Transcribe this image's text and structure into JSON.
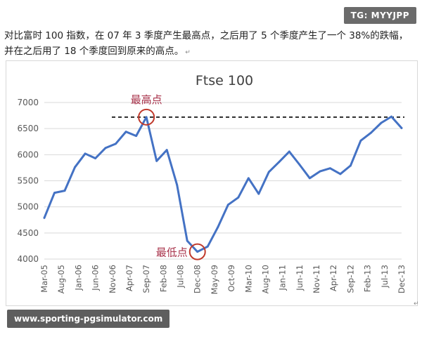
{
  "badge": {
    "text": "TG: MYYJPP"
  },
  "article": {
    "line1": "对比富时 100 指数，在 07 年 3 季度产生最高点，之后用了 5 个季度产生了一个 38%的跌幅，",
    "line2": "并在之后用了 18 个季度回到原来的高点。",
    "caret": "↵"
  },
  "footer": {
    "url": "www.sporting-pgsimulator.com",
    "mark": "↵"
  },
  "colors": {
    "line": "#4472c4",
    "marker": "#c0392b",
    "annotation_text": "#a8324a",
    "dashed": "#000000",
    "grid": "#d9d9d9"
  },
  "chart_data": {
    "type": "line",
    "title": "Ftse 100",
    "ylim": [
      4000,
      7000
    ],
    "yticks": [
      4000,
      4500,
      5000,
      5500,
      6000,
      6500,
      7000
    ],
    "xtick_labels": [
      "Mar-05",
      "Aug-05",
      "Jan-06",
      "Jun-06",
      "Nov-06",
      "Apr-07",
      "Sep-07",
      "Feb-08",
      "Jul-08",
      "Dec-08",
      "May-09",
      "Oct-09",
      "Mar-10",
      "Aug-10",
      "Jan-11",
      "Jun-11",
      "Nov-11",
      "Apr-12",
      "Sep-12",
      "Feb-13",
      "Jul-13",
      "Dec-13"
    ],
    "grid": true,
    "legend": "none",
    "reference_line": {
      "value": 6720,
      "style": "dashed"
    },
    "series": [
      {
        "values": [
          4790,
          5270,
          5310,
          5760,
          6020,
          5930,
          6130,
          6210,
          6440,
          6360,
          6720,
          5880,
          6090,
          5420,
          4350,
          4140,
          4240,
          4610,
          5040,
          5180,
          5550,
          5250,
          5670,
          5860,
          6060,
          5810,
          5550,
          5680,
          5740,
          5630,
          5790,
          6270,
          6420,
          6610,
          6730,
          6510
        ]
      }
    ],
    "annotations": [
      {
        "text": "最高点",
        "point_index": 10
      },
      {
        "text": "最低点",
        "point_index": 15
      }
    ]
  }
}
